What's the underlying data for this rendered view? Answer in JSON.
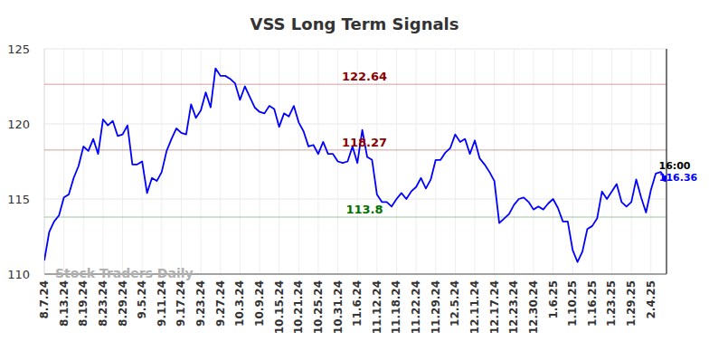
{
  "chart_data": {
    "type": "line",
    "title": "VSS Long Term Signals",
    "watermark": "Stock Traders Daily",
    "categories": [
      "8.7.24",
      null,
      null,
      null,
      "8.13.24",
      null,
      null,
      null,
      "8.19.24",
      null,
      null,
      null,
      "8.23.24",
      null,
      null,
      null,
      "8.29.24",
      null,
      null,
      null,
      "9.5.24",
      null,
      null,
      null,
      "9.11.24",
      null,
      null,
      null,
      "9.17.24",
      null,
      null,
      null,
      "9.23.24",
      null,
      null,
      null,
      "9.27.24",
      null,
      null,
      null,
      "10.3.24",
      null,
      null,
      null,
      "10.9.24",
      null,
      null,
      null,
      "10.15.24",
      null,
      null,
      null,
      "10.21.24",
      null,
      null,
      null,
      "10.25.24",
      null,
      null,
      null,
      "10.31.24",
      null,
      null,
      null,
      "11.6.24",
      null,
      null,
      null,
      "11.12.24",
      null,
      null,
      null,
      "11.18.24",
      null,
      null,
      null,
      "11.22.24",
      null,
      null,
      null,
      "11.29.24",
      null,
      null,
      null,
      "12.5.24",
      null,
      null,
      null,
      "12.11.24",
      null,
      null,
      null,
      "12.17.24",
      null,
      null,
      null,
      "12.23.24",
      null,
      null,
      null,
      "12.30.24",
      null,
      null,
      null,
      "1.6.25",
      null,
      null,
      null,
      "1.10.25",
      null,
      null,
      null,
      "1.16.25",
      null,
      null,
      null,
      "1.23.25",
      null,
      null,
      null,
      "1.29.25",
      null,
      null,
      null,
      "2.4.25",
      null,
      null,
      null
    ],
    "values": [
      110.9,
      112.8,
      113.5,
      113.9,
      115.1,
      115.3,
      116.4,
      117.2,
      118.5,
      118.2,
      119.0,
      118.0,
      120.3,
      119.9,
      120.2,
      119.2,
      119.3,
      119.9,
      117.3,
      117.3,
      117.5,
      115.4,
      116.4,
      116.2,
      116.8,
      118.2,
      119.0,
      119.7,
      119.4,
      119.3,
      121.3,
      120.4,
      120.9,
      122.1,
      121.1,
      123.7,
      123.2,
      123.2,
      123.0,
      122.7,
      121.6,
      122.5,
      121.8,
      121.1,
      120.8,
      120.7,
      121.2,
      121.0,
      119.8,
      120.7,
      120.5,
      121.2,
      120.1,
      119.5,
      118.5,
      118.6,
      118.0,
      118.8,
      118.0,
      118.0,
      117.5,
      117.4,
      117.5,
      118.5,
      117.4,
      119.6,
      117.8,
      117.6,
      115.3,
      114.8,
      114.8,
      114.5,
      115.0,
      115.4,
      115.0,
      115.5,
      115.8,
      116.4,
      115.7,
      116.3,
      117.6,
      117.6,
      118.1,
      118.4,
      119.3,
      118.8,
      119.0,
      118.0,
      118.9,
      117.7,
      117.3,
      116.8,
      116.2,
      113.4,
      113.7,
      114.0,
      114.6,
      115.0,
      115.1,
      114.8,
      114.3,
      114.5,
      114.3,
      114.7,
      115.0,
      114.4,
      113.5,
      113.5,
      111.6,
      110.8,
      111.5,
      113.0,
      113.2,
      113.7,
      115.5,
      115.0,
      115.5,
      116.0,
      114.8,
      114.5,
      114.8,
      116.3,
      115.1,
      114.1,
      115.6,
      116.7,
      116.8,
      116.36
    ],
    "color": "#0000ff",
    "ylim": [
      110,
      125
    ],
    "yticks": [
      110,
      115,
      120,
      125
    ],
    "grid": true,
    "reference_lines": [
      {
        "value": 122.64,
        "color": "#8b0000"
      },
      {
        "value": 118.27,
        "color": "#8b0000"
      },
      {
        "value": 113.8,
        "color": "#007000"
      }
    ],
    "last_point": {
      "time": "16:00",
      "value": 116.36
    }
  }
}
